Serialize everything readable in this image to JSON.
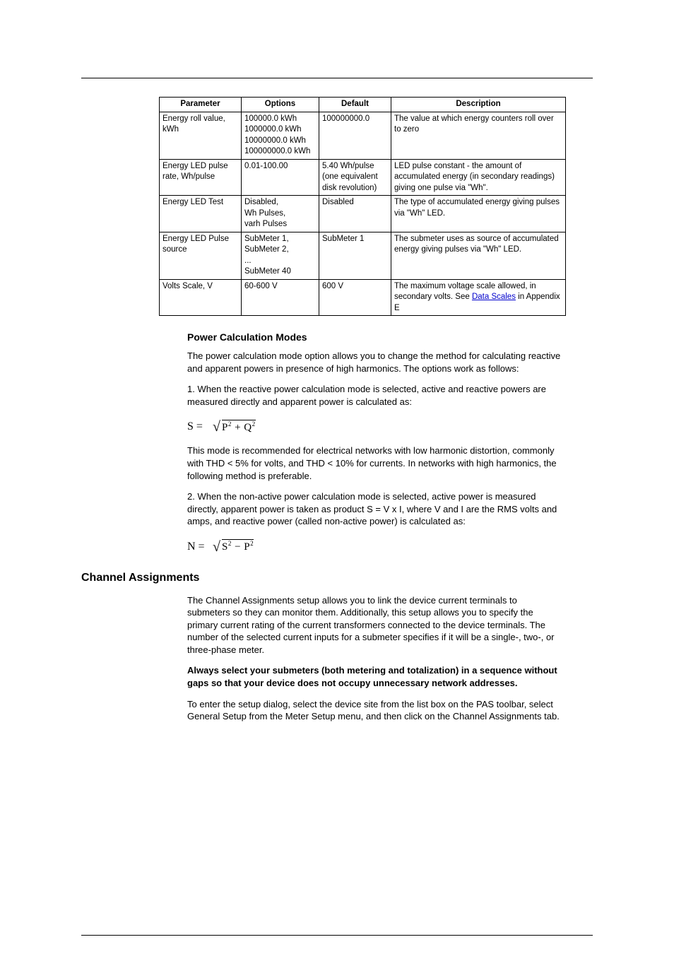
{
  "table": {
    "headers": [
      "Parameter",
      "Options",
      "Default",
      "Description"
    ],
    "rows": [
      {
        "param": "Energy roll value, kWh",
        "options": [
          "100000.0 kWh",
          "1000000.0 kWh",
          "10000000.0 kWh",
          "100000000.0 kWh"
        ],
        "default": "100000000.0",
        "desc_plain": "The value at which energy counters roll over to zero"
      },
      {
        "param": "Energy LED pulse rate, Wh/pulse",
        "options": [
          "0.01-100.00"
        ],
        "default": "5.40 Wh/pulse (one equivalent disk revolution)",
        "desc_plain": "LED pulse constant - the amount of accumulated energy (in secondary readings) giving one pulse via \"Wh\"."
      },
      {
        "param": "Energy LED Test",
        "options": [
          "Disabled,",
          "Wh Pulses,",
          "varh Pulses"
        ],
        "default": "Disabled",
        "desc_plain": "The type of accumulated energy giving pulses via \"Wh\" LED."
      },
      {
        "param": "Energy LED Pulse source",
        "options": [
          "SubMeter 1,",
          "SubMeter 2,",
          "...",
          "SubMeter 40"
        ],
        "default": "SubMeter 1",
        "desc_plain": "The submeter uses as source of accumulated energy giving pulses via \"Wh\" LED."
      },
      {
        "param": "Volts Scale, V",
        "options": [
          "60-600 V"
        ],
        "default": "600 V",
        "desc_pre": "The maximum voltage scale allowed, in secondary volts. See ",
        "desc_link": "Data Scales",
        "desc_post": " in Appendix E"
      }
    ]
  },
  "power_modes": {
    "heading": "Power Calculation Modes",
    "p1": "The power calculation mode option allows you to change the method for calculating reactive and apparent powers in presence of high harmonics. The options work as follows:",
    "p2": "1. When the reactive power calculation mode is selected, active and reactive powers are measured directly and apparent power is calculated as:",
    "formula1": {
      "lhs": "S =",
      "expr_html": "P<sup>2</sup> + Q<sup>2</sup>"
    },
    "p3": "This mode is recommended for electrical networks with low harmonic distortion, commonly with THD < 5% for volts, and THD < 10% for currents. In networks with high harmonics, the following method is preferable.",
    "p4": "2. When the non-active power calculation mode is selected, active power is measured directly, apparent power is taken as product S = V x I, where V and I are the RMS volts and amps, and reactive power (called non-active power) is calculated as:",
    "formula2": {
      "lhs": "N =",
      "expr_html": "S<sup>2</sup> − P<sup>2</sup>"
    }
  },
  "channel": {
    "heading": "Channel Assignments",
    "p1": "The Channel Assignments setup allows you to link the device current terminals to submeters so they can monitor them. Additionally, this setup allows you to specify the primary current rating of the current transformers connected to the device terminals. The number of the selected current inputs for a submeter specifies if it will be a single-, two-, or three-phase meter.",
    "p2_bold": "Always select your submeters (both metering and totalization) in a sequence without gaps so that your device does not occupy unnecessary network addresses.",
    "p3": "To enter the setup dialog, select the device site from the list box on the PAS toolbar, select General Setup from the Meter Setup menu, and then click on the Channel Assignments tab."
  }
}
